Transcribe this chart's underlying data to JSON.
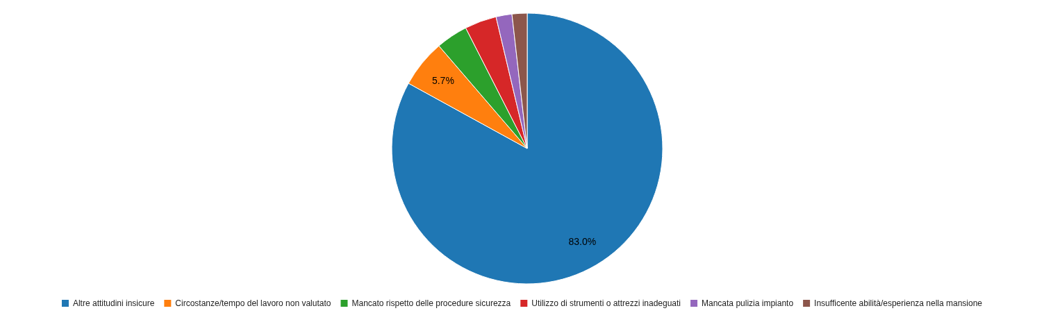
{
  "chart_data": {
    "type": "pie",
    "categories": [
      "Altre attitudini insicure",
      "Circostanze/tempo del lavoro non valutato",
      "Mancato rispetto delle procedure sicurezza",
      "Utilizzo di strumenti o attrezzi inadeguati",
      "Mancata pulizia impianto",
      "Insufficente abilità/esperienza nella mansione"
    ],
    "values": [
      83.0,
      5.7,
      3.8,
      3.8,
      1.9,
      1.8
    ],
    "colors": [
      "#1f77b4",
      "#ff7f0e",
      "#2ca02c",
      "#d62728",
      "#9467bd",
      "#8c564b"
    ],
    "value_labels": [
      "83.0%",
      "5.7%",
      null,
      null,
      null,
      null
    ],
    "legend": "bottom"
  }
}
